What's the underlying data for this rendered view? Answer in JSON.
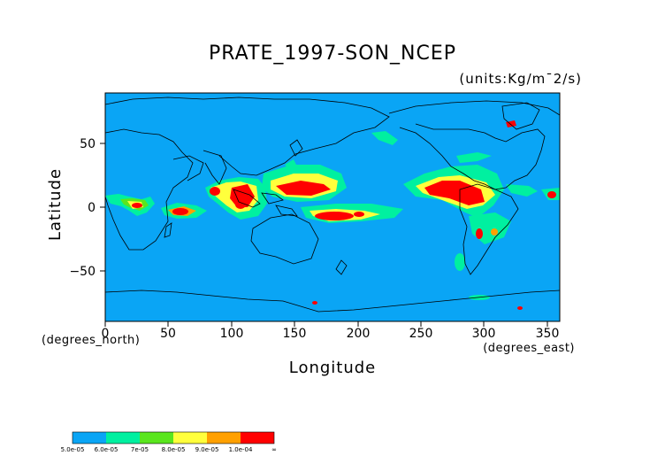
{
  "title": "PRATE_1997-SON_NCEP",
  "units": "(units:Kg/m¯2/s)",
  "axes": {
    "xlabel": "Longitude",
    "ylabel": "Latitude",
    "x_unit_left": "(degrees_north)",
    "x_unit_right": "(degrees_east)",
    "x_ticks": [
      "0",
      "50",
      "100",
      "150",
      "200",
      "250",
      "300",
      "350"
    ],
    "y_ticks": [
      "50",
      "0",
      "−50"
    ]
  },
  "legend": {
    "colors": [
      "#0aa5f5",
      "#00f0a0",
      "#5ae61e",
      "#ffff3c",
      "#ffa000",
      "#ff0000"
    ],
    "labels": [
      "5.0e-05",
      "6.0e-05",
      "7e-05",
      "8.0e-05",
      "9.0e-05",
      "1.0e-04",
      "∞"
    ]
  },
  "colors": {
    "ocean": "#0aa5f5",
    "coast": "#000000"
  }
}
